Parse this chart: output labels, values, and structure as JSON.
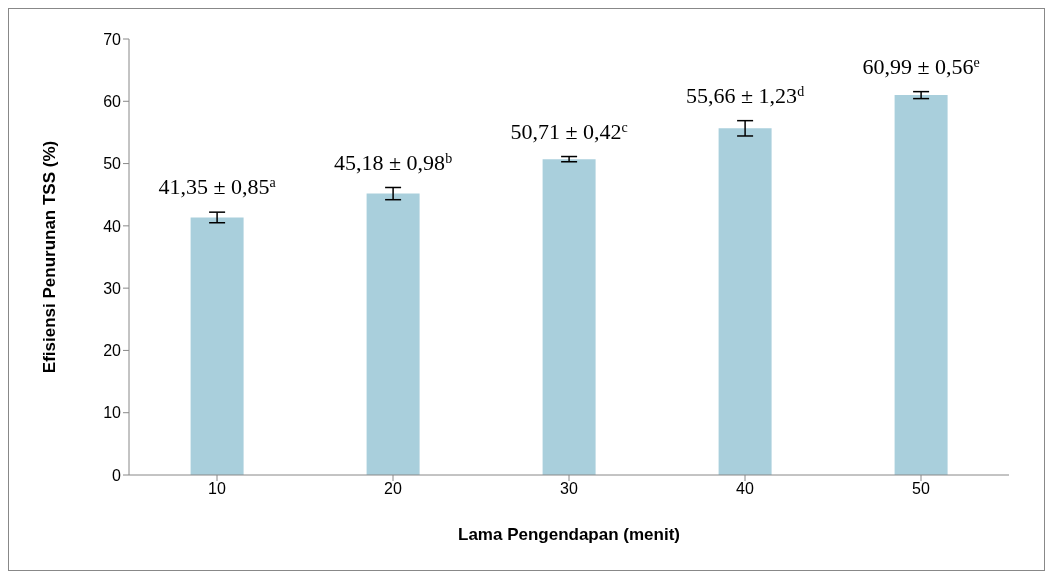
{
  "chart_data": {
    "type": "bar",
    "xlabel": "Lama Pengendapan (menit)",
    "ylabel": "Efisiensi Penurunan TSS (%)",
    "categories": [
      "10",
      "20",
      "30",
      "40",
      "50"
    ],
    "values": [
      41.35,
      45.18,
      50.71,
      55.66,
      60.99
    ],
    "errors": [
      0.85,
      0.98,
      0.42,
      1.23,
      0.56
    ],
    "value_labels": [
      "41,35 ± 0,85$^{a}$",
      "45,18 ± 0,98$^{b}$",
      "50,71 ± 0,42$^{c}$",
      "55,66 ± 1,23$^{d}$",
      "60,99 ± 0,56$^{e}$"
    ],
    "color": "#a9cfdc",
    "ylim": [
      0,
      70
    ],
    "yticks": [
      0,
      10,
      20,
      30,
      40,
      50,
      60,
      70
    ],
    "grid": false,
    "legend": false
  }
}
